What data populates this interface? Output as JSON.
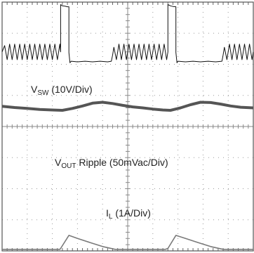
{
  "chart_data": {
    "type": "line",
    "grid": true,
    "x_divisions": 10,
    "y_divisions": 8,
    "channels": [
      {
        "name_main": "V",
        "name_sub": "SW",
        "scale": " (10V/Div)",
        "color": "#111111",
        "lw": 1.0,
        "points": [
          [
            0,
            6.4
          ],
          [
            0.1,
            6.6
          ],
          [
            0.2,
            6.15
          ],
          [
            0.3,
            6.65
          ],
          [
            0.4,
            6.15
          ],
          [
            0.5,
            6.65
          ],
          [
            0.6,
            6.15
          ],
          [
            0.7,
            6.65
          ],
          [
            0.8,
            6.15
          ],
          [
            0.9,
            6.65
          ],
          [
            1.0,
            6.15
          ],
          [
            1.1,
            6.65
          ],
          [
            1.2,
            6.15
          ],
          [
            1.3,
            6.65
          ],
          [
            1.4,
            6.15
          ],
          [
            1.5,
            6.65
          ],
          [
            1.6,
            6.15
          ],
          [
            1.7,
            6.65
          ],
          [
            1.8,
            6.15
          ],
          [
            1.9,
            6.65
          ],
          [
            2.0,
            6.15
          ],
          [
            2.1,
            6.65
          ],
          [
            2.2,
            6.15
          ],
          [
            2.3,
            6.65
          ],
          [
            2.33,
            6.4
          ],
          [
            2.33,
            7.92
          ],
          [
            2.4,
            7.88
          ],
          [
            2.5,
            7.87
          ],
          [
            2.6,
            7.85
          ],
          [
            2.66,
            7.85
          ],
          [
            2.66,
            6.38
          ],
          [
            2.7,
            6.05
          ],
          [
            2.75,
            6.1
          ],
          [
            3.0,
            6.08
          ],
          [
            3.3,
            6.1
          ],
          [
            3.6,
            6.08
          ],
          [
            3.9,
            6.1
          ],
          [
            4.2,
            6.08
          ],
          [
            4.35,
            6.1
          ],
          [
            4.4,
            6.3
          ],
          [
            4.45,
            6.55
          ],
          [
            4.55,
            6.15
          ],
          [
            4.65,
            6.65
          ],
          [
            4.75,
            6.15
          ],
          [
            4.85,
            6.65
          ],
          [
            4.95,
            6.15
          ],
          [
            5.05,
            6.65
          ],
          [
            5.15,
            6.15
          ],
          [
            5.25,
            6.65
          ],
          [
            5.35,
            6.15
          ],
          [
            5.45,
            6.65
          ],
          [
            5.55,
            6.15
          ],
          [
            5.65,
            6.65
          ],
          [
            5.75,
            6.15
          ],
          [
            5.85,
            6.65
          ],
          [
            5.95,
            6.15
          ],
          [
            6.05,
            6.65
          ],
          [
            6.15,
            6.15
          ],
          [
            6.25,
            6.65
          ],
          [
            6.35,
            6.15
          ],
          [
            6.45,
            6.65
          ],
          [
            6.55,
            6.15
          ],
          [
            6.6,
            6.4
          ],
          [
            6.6,
            7.92
          ],
          [
            6.7,
            7.88
          ],
          [
            6.8,
            7.86
          ],
          [
            6.92,
            7.85
          ],
          [
            6.92,
            6.38
          ],
          [
            6.96,
            6.05
          ],
          [
            7.0,
            6.1
          ],
          [
            7.3,
            6.08
          ],
          [
            7.6,
            6.1
          ],
          [
            7.9,
            6.08
          ],
          [
            8.2,
            6.1
          ],
          [
            8.5,
            6.08
          ],
          [
            8.75,
            6.1
          ],
          [
            8.8,
            6.3
          ],
          [
            8.85,
            6.55
          ],
          [
            8.95,
            6.15
          ],
          [
            9.05,
            6.65
          ],
          [
            9.15,
            6.15
          ],
          [
            9.25,
            6.65
          ],
          [
            9.35,
            6.15
          ],
          [
            9.45,
            6.65
          ],
          [
            9.55,
            6.15
          ],
          [
            9.65,
            6.65
          ],
          [
            9.75,
            6.15
          ],
          [
            9.85,
            6.65
          ],
          [
            9.95,
            6.15
          ],
          [
            10,
            6.4
          ]
        ]
      },
      {
        "name_main": "V",
        "name_sub": "OUT",
        "scale": " Ripple (50mVac/Div)",
        "color": "#555555",
        "lw": 4.0,
        "points": [
          [
            0,
            4.65
          ],
          [
            0.5,
            4.61
          ],
          [
            1.0,
            4.58
          ],
          [
            1.5,
            4.55
          ],
          [
            2.0,
            4.53
          ],
          [
            2.4,
            4.52
          ],
          [
            2.8,
            4.58
          ],
          [
            3.2,
            4.66
          ],
          [
            3.6,
            4.75
          ],
          [
            4.0,
            4.78
          ],
          [
            4.4,
            4.74
          ],
          [
            4.8,
            4.68
          ],
          [
            5.2,
            4.63
          ],
          [
            5.6,
            4.6
          ],
          [
            6.0,
            4.56
          ],
          [
            6.4,
            4.53
          ],
          [
            6.7,
            4.52
          ],
          [
            7.1,
            4.6
          ],
          [
            7.5,
            4.7
          ],
          [
            7.9,
            4.78
          ],
          [
            8.3,
            4.77
          ],
          [
            8.7,
            4.72
          ],
          [
            9.1,
            4.66
          ],
          [
            9.5,
            4.62
          ],
          [
            10,
            4.6
          ]
        ]
      },
      {
        "name_main": "I",
        "name_sub": "L",
        "scale": " (1A/Div)",
        "color": "#7a7a7a",
        "lw": 1.6,
        "points": [
          [
            0,
            0.05
          ],
          [
            0.4,
            0.05
          ],
          [
            0.8,
            0.05
          ],
          [
            1.2,
            0.05
          ],
          [
            1.6,
            0.05
          ],
          [
            2.0,
            0.05
          ],
          [
            2.3,
            0.05
          ],
          [
            2.33,
            0.08
          ],
          [
            2.66,
            0.5
          ],
          [
            3.0,
            0.4
          ],
          [
            3.5,
            0.27
          ],
          [
            4.0,
            0.14
          ],
          [
            4.5,
            0.05
          ],
          [
            5.0,
            0.05
          ],
          [
            5.5,
            0.05
          ],
          [
            6.0,
            0.05
          ],
          [
            6.5,
            0.05
          ],
          [
            6.6,
            0.08
          ],
          [
            6.92,
            0.5
          ],
          [
            7.3,
            0.4
          ],
          [
            7.8,
            0.27
          ],
          [
            8.3,
            0.14
          ],
          [
            8.8,
            0.05
          ],
          [
            9.3,
            0.05
          ],
          [
            10,
            0.05
          ]
        ]
      }
    ]
  }
}
